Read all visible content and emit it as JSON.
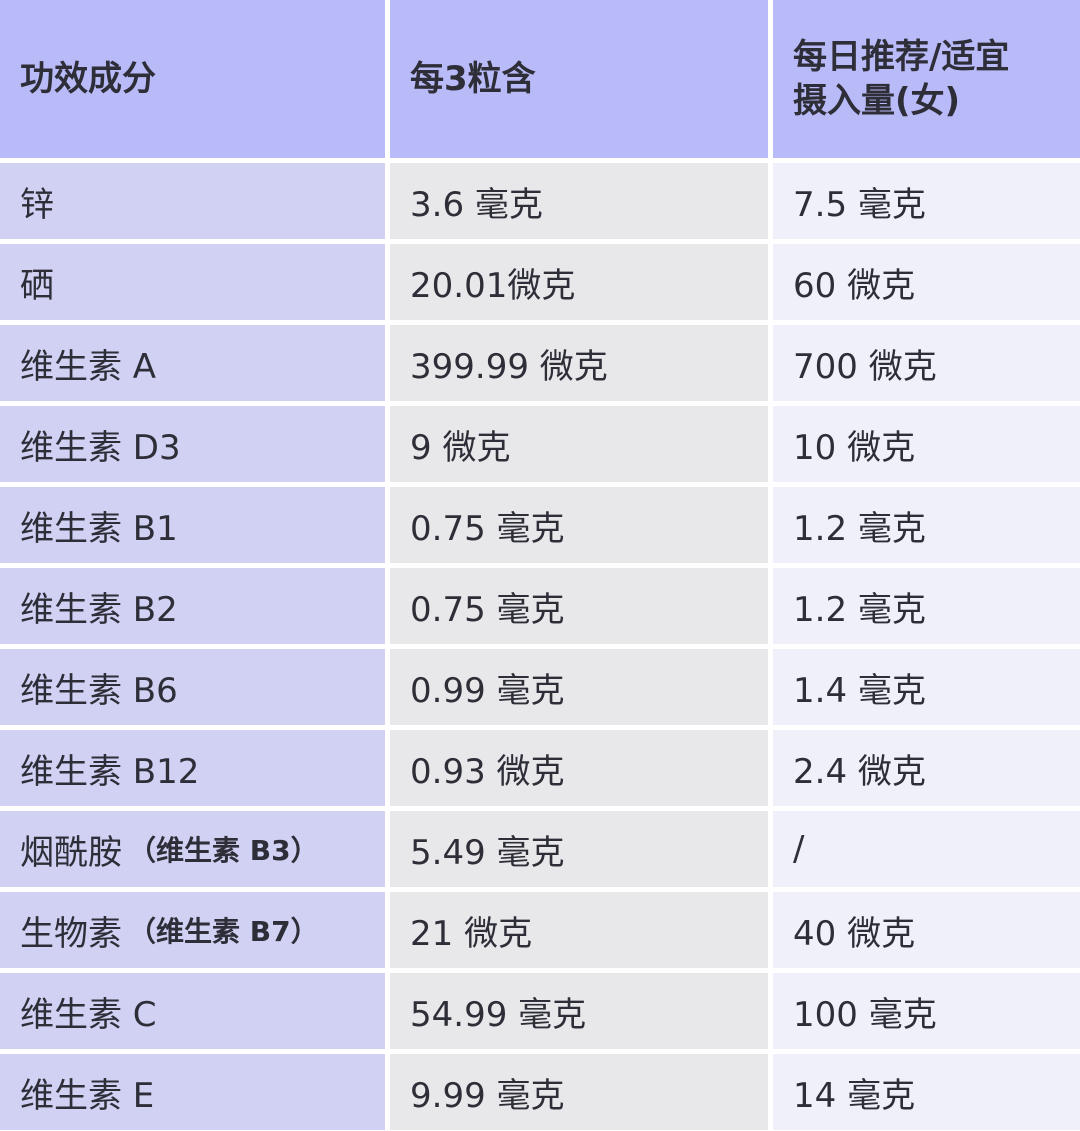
{
  "header": [
    "功效成分",
    "每3粒含",
    "每日推荐/适宜\n摄入量(女)"
  ],
  "header_lines": {
    "col3_line1": "每日推荐/适宜",
    "col3_line2": "摄入量(女)"
  },
  "rows": [
    {
      "name": "锌",
      "note": "",
      "per3": "3.6 毫克",
      "daily": "7.5 毫克"
    },
    {
      "name": "硒",
      "note": "",
      "per3": "20.01微克",
      "daily": "60 微克"
    },
    {
      "name": "维生素 A",
      "note": "",
      "per3": "399.99 微克",
      "daily": "700 微克"
    },
    {
      "name": "维生素 D3",
      "note": "",
      "per3": "9 微克",
      "daily": "10 微克"
    },
    {
      "name": "维生素 B1",
      "note": "",
      "per3": "0.75 毫克",
      "daily": "1.2 毫克"
    },
    {
      "name": "维生素 B2",
      "note": "",
      "per3": "0.75 毫克",
      "daily": "1.2 毫克"
    },
    {
      "name": "维生素 B6",
      "note": "",
      "per3": "0.99 毫克",
      "daily": "1.4 毫克"
    },
    {
      "name": "维生素 B12",
      "note": "",
      "per3": "0.93 微克",
      "daily": "2.4 微克"
    },
    {
      "name": "烟酰胺",
      "note": "（维生素 B3）",
      "per3": "5.49 毫克",
      "daily": "/"
    },
    {
      "name": "生物素",
      "note": "（维生素 B7）",
      "per3": "21 微克",
      "daily": "40 微克"
    },
    {
      "name": "维生素 C",
      "note": "",
      "per3": "54.99 毫克",
      "daily": "100 毫克"
    },
    {
      "name": "维生素 E",
      "note": "",
      "per3": "9.99 毫克",
      "daily": "14 毫克"
    }
  ],
  "colors": {
    "header": "#b9baf8",
    "col1": "#d0d1f3",
    "col2": "#e8e8eb",
    "col3": "#f0f0fa"
  }
}
